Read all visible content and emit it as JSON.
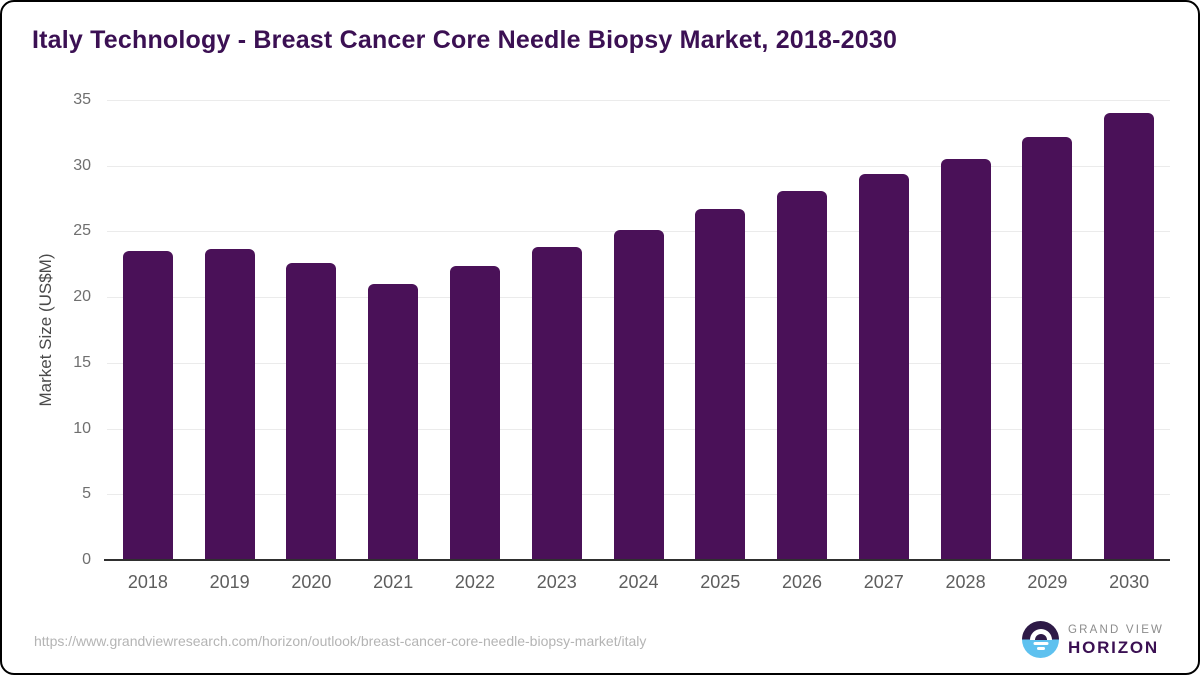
{
  "chart_data": {
    "type": "bar",
    "title": "Italy Technology - Breast Cancer Core Needle Biopsy Market, 2018-2030",
    "categories": [
      "2018",
      "2019",
      "2020",
      "2021",
      "2022",
      "2023",
      "2024",
      "2025",
      "2026",
      "2027",
      "2028",
      "2029",
      "2030"
    ],
    "values": [
      23.5,
      23.7,
      22.6,
      21.0,
      22.4,
      23.8,
      25.1,
      26.7,
      28.1,
      29.4,
      30.5,
      32.2,
      34.0
    ],
    "xlabel": "",
    "ylabel": "Market Size (US$M)",
    "ylim": [
      0,
      35
    ],
    "yticks": [
      0,
      5,
      10,
      15,
      20,
      25,
      30,
      35
    ],
    "grid": true,
    "legend": false,
    "bar_color": "#4a1158"
  },
  "footer": {
    "url": "https://www.grandviewresearch.com/horizon/outlook/breast-cancer-core-needle-biopsy-market/italy",
    "logo": {
      "line1": "GRAND VIEW",
      "line2": "HORIZON"
    }
  },
  "colors": {
    "bar": "#4a1158",
    "title": "#3b1053",
    "logo_dark": "#2e1a47",
    "logo_blue": "#5ec1ef"
  }
}
